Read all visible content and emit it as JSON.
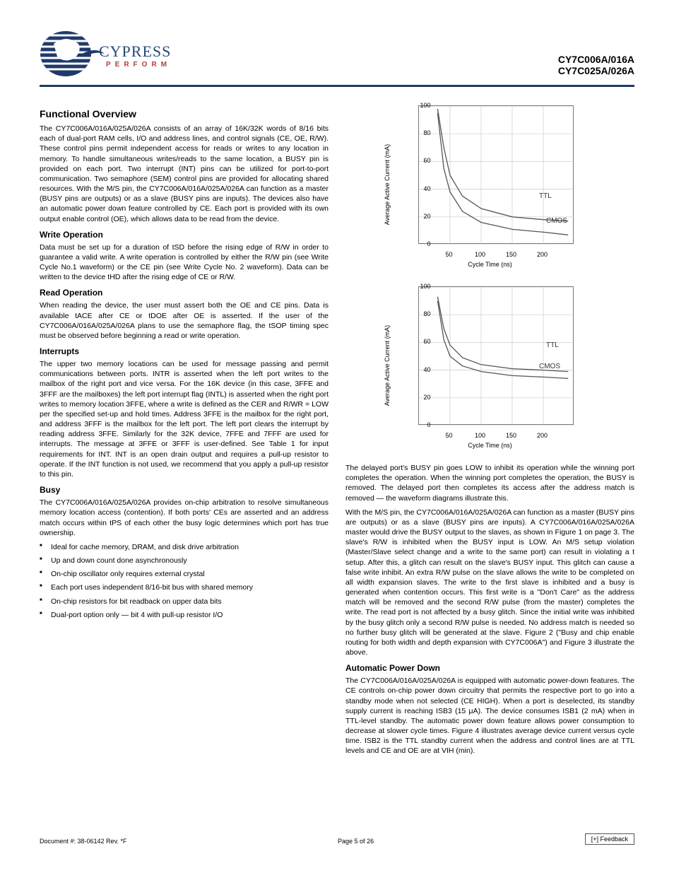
{
  "header": {
    "logo_name": "CYPRESS",
    "logo_tagline": "PERFORM",
    "doc_title": "CY7C006A/016A\nCY7C025A/026A"
  },
  "left": {
    "func_overview_h": "Functional Overview",
    "p1": "The CY7C006A/016A/025A/026A consists of an array of 16K/32K words of 8/16 bits each of dual-port RAM cells, I/O and address lines, and control signals (CE, OE, R/W). These control pins permit independent access for reads or writes to any location in memory. To handle simultaneous writes/reads to the same location, a BUSY pin is provided on each port. Two interrupt (INT) pins can be utilized for port-to-port communication. Two semaphore (SEM) control pins are provided for allocating shared resources. With the M/S pin, the CY7C006A/016A/025A/026A can function as a master (BUSY pins are outputs) or as a slave (BUSY pins are inputs). The devices also have an automatic power down feature controlled by CE. Each port is provided with its own output enable control (OE), which allows data to be read from the device.",
    "write_h": "Write Operation",
    "p2": "Data must be set up for a duration of tSD before the rising edge of R/W in order to guarantee a valid write. A write operation is controlled by either the R/W pin (see Write Cycle No.1 waveform) or the CE pin (see Write Cycle No. 2 waveform). Data can be written to the device tHD after the rising edge of CE or R/W.",
    "read_h": "Read Operation",
    "p3": "When reading the device, the user must assert both the OE and CE pins. Data is available tACE after CE or tDOE after OE is asserted. If the user of the CY7C006A/016A/025A/026A plans to use the semaphore flag, the tSOP timing spec must be observed before beginning a read or write operation.",
    "interrupts_h": "Interrupts",
    "p4": "The upper two memory locations can be used for message passing and permit communications between ports. INTR is asserted when the left port writes to the mailbox of the right port and vice versa. For the 16K device (in this case, 3FFE and 3FFF are the mailboxes) the left port interrupt flag (INTL) is asserted when the right port writes to memory location 3FFE, where a write is defined as the CER and R/WR = LOW per the specified set-up and hold times. Address 3FFE is the mailbox for the right port, and address 3FFF is the mailbox for the left port. The left port clears the interrupt by reading address 3FFE. Similarly for the 32K device, 7FFE and 7FFF are used for interrupts. The message at 3FFE or 3FFF is user-defined. See Table 1 for input requirements for INT. INT is an open drain output and requires a pull-up resistor to operate. If the INT function is not used, we recommend that you apply a pull-up resistor to this pin.",
    "busy_h": "Busy",
    "p5": "The CY7C006A/016A/025A/026A provides on-chip arbitration to resolve simultaneous memory location access (contention). If both ports' CEs are asserted and an address match occurs within tPS of each other the busy logic determines which port has true ownership.",
    "bullets": [
      "Ideal for cache memory, DRAM, and disk drive arbitration",
      "Up and down count done asynchronously",
      "On-chip oscillator only requires external crystal",
      "Each port uses independent 8/16-bit bus with shared memory",
      "On-chip resistors for bit readback on upper data bits",
      "Dual-port option only — bit 4 with pull-up resistor I/O"
    ],
    "p6": ""
  },
  "right": {
    "p1": "The delayed port's BUSY pin goes LOW to inhibit its operation while the winning port completes the operation. When the winning port completes the operation, the BUSY is removed. The delayed port then completes its access after the address match is removed — the waveform diagrams illustrate this.",
    "p2": "With the M/S pin, the CY7C006A/016A/025A/026A can function as a master (BUSY pins are outputs) or as a slave (BUSY pins are inputs). A CY7C006A/016A/025A/026A master would drive the BUSY output to the slaves, as shown in Figure 1 on page 3. The slave's R/W is inhibited when the BUSY input is LOW. An M/S setup violation (Master/Slave select change and a write to the same port) can result in violating a t setup. After this, a glitch can result on the slave's BUSY input. This glitch can cause a false write inhibit. An extra R/W pulse on the slave allows the write to be completed on all width expansion slaves. The write to the first slave is inhibited and a busy is generated when contention occurs. This first write is a \"Don't Care\" as the address match will be removed and the second R/W pulse (from the master) completes the write. The read port is not affected by a busy glitch. Since the initial write was inhibited by the busy glitch only a second R/W pulse is needed. No address match is needed so no further busy glitch will be generated at the slave. Figure 2 (\"Busy and chip enable routing for both width and depth expansion with CY7C006A\") and Figure 3 illustrate the above.",
    "autopd_h": "Automatic Power Down",
    "p3": "The CY7C006A/016A/025A/026A is equipped with automatic power-down features. The CE controls on-chip power down circuitry that permits the respective port to go into a standby mode when not selected (CE HIGH). When a port is deselected, its standby supply current is reaching ISB3 (15 μA). The device consumes ISB1 (2 mA) when in TTL-level standby. The automatic power down feature allows power consumption to decrease at slower cycle times. Figure 4 illustrates average device current versus cycle time. ISB2 is the TTL standby current when the address and control lines are at TTL levels and CE and OE are at VIH (min).",
    "chart1": {
      "type": "line",
      "ylabel": "Average Active Current (mA)",
      "xlabel": "Cycle Time (ns)",
      "ylim": [
        0,
        100
      ],
      "ytick_step": 20,
      "xlim": [
        0,
        250
      ],
      "xticks": [
        50,
        100,
        150,
        200
      ],
      "series": [
        {
          "name": "TTL",
          "label_pos": [
            170,
            130
          ],
          "color": "#555555",
          "points": [
            [
              30,
              98
            ],
            [
              40,
              70
            ],
            [
              50,
              50
            ],
            [
              70,
              35
            ],
            [
              100,
              26
            ],
            [
              150,
              20
            ],
            [
              200,
              18
            ],
            [
              240,
              17
            ]
          ]
        },
        {
          "name": "CMOS",
          "label_pos": [
            180,
            165
          ],
          "color": "#555555",
          "points": [
            [
              30,
              95
            ],
            [
              40,
              55
            ],
            [
              50,
              38
            ],
            [
              70,
              24
            ],
            [
              100,
              16
            ],
            [
              150,
              11
            ],
            [
              200,
              9
            ],
            [
              240,
              7
            ]
          ]
        }
      ],
      "grid_color": "#cccccc",
      "axis_color": "#666666",
      "label_fontsize": 9
    },
    "chart2": {
      "type": "line",
      "ylabel": "Average Active Current (mA)",
      "xlabel": "Cycle Time (ns)",
      "ylim": [
        0,
        100
      ],
      "ytick_step": 20,
      "xlim": [
        0,
        250
      ],
      "xticks": [
        50,
        100,
        150,
        200
      ],
      "series": [
        {
          "name": "TTL",
          "label_pos": [
            180,
            85
          ],
          "color": "#555555",
          "points": [
            [
              30,
              93
            ],
            [
              40,
              70
            ],
            [
              50,
              58
            ],
            [
              70,
              49
            ],
            [
              100,
              44
            ],
            [
              150,
              41
            ],
            [
              200,
              40
            ],
            [
              240,
              39
            ]
          ]
        },
        {
          "name": "CMOS",
          "label_pos": [
            170,
            115
          ],
          "color": "#555555",
          "points": [
            [
              30,
              90
            ],
            [
              40,
              62
            ],
            [
              50,
              50
            ],
            [
              70,
              43
            ],
            [
              100,
              39
            ],
            [
              150,
              36
            ],
            [
              200,
              35
            ],
            [
              240,
              34
            ]
          ]
        }
      ],
      "grid_color": "#cccccc",
      "axis_color": "#666666",
      "label_fontsize": 9
    }
  },
  "footer": {
    "doc_num": "Document #: 38-06142 Rev. *F",
    "page": "Page 5 of 26",
    "feedback": "[+] Feedback"
  }
}
